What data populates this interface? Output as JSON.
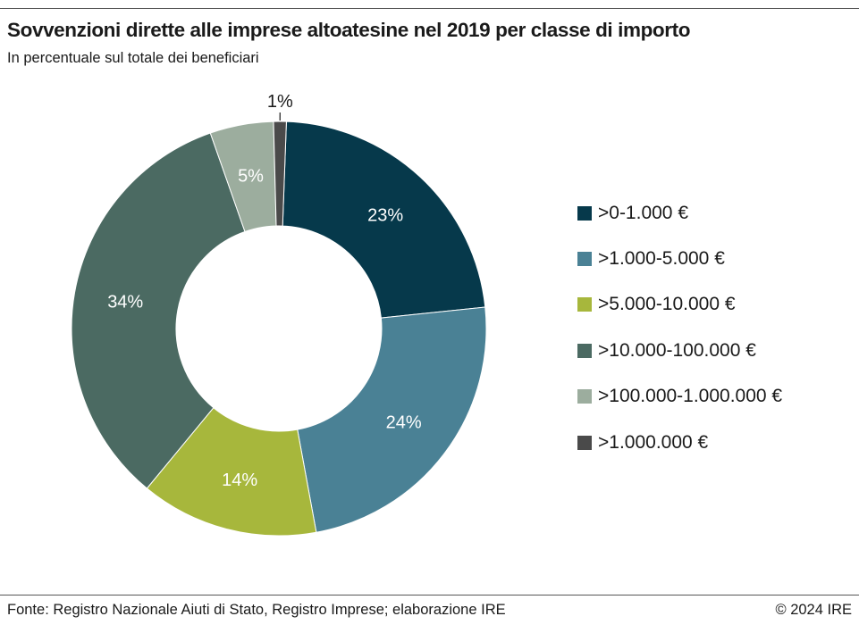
{
  "header": {
    "title": "Sovvenzioni dirette alle imprese altoatesine nel 2019 per classe di importo",
    "subtitle": "In percentuale sul totale dei beneficiari"
  },
  "footer": {
    "source": "Fonte: Registro Nazionale Aiuti di Stato, Registro Imprese; elaborazione IRE",
    "copyright": "© 2024 IRE"
  },
  "chart_data": {
    "type": "pie",
    "variant": "donut",
    "title": "Sovvenzioni dirette alle imprese altoatesine nel 2019 per classe di importo",
    "subtitle": "In percentuale sul totale dei beneficiari",
    "unit": "%",
    "legend_position": "right",
    "categories": [
      ">0-1.000 €",
      ">1.000-5.000 €",
      ">5.000-10.000 €",
      ">10.000-100.000 €",
      ">100.000-1.000.000 €",
      ">1.000.000 €"
    ],
    "values": [
      23,
      24,
      14,
      34,
      5,
      1
    ],
    "labels": [
      "23%",
      "24%",
      "14%",
      "34%",
      "5%",
      "1%"
    ],
    "colors": [
      "#06394b",
      "#4a8195",
      "#a7b73c",
      "#4b6a62",
      "#9cad9e",
      "#4a4a4a"
    ],
    "label_colors": [
      "#ffffff",
      "#ffffff",
      "#ffffff",
      "#ffffff",
      "#ffffff",
      "#1a1a1a"
    ]
  }
}
